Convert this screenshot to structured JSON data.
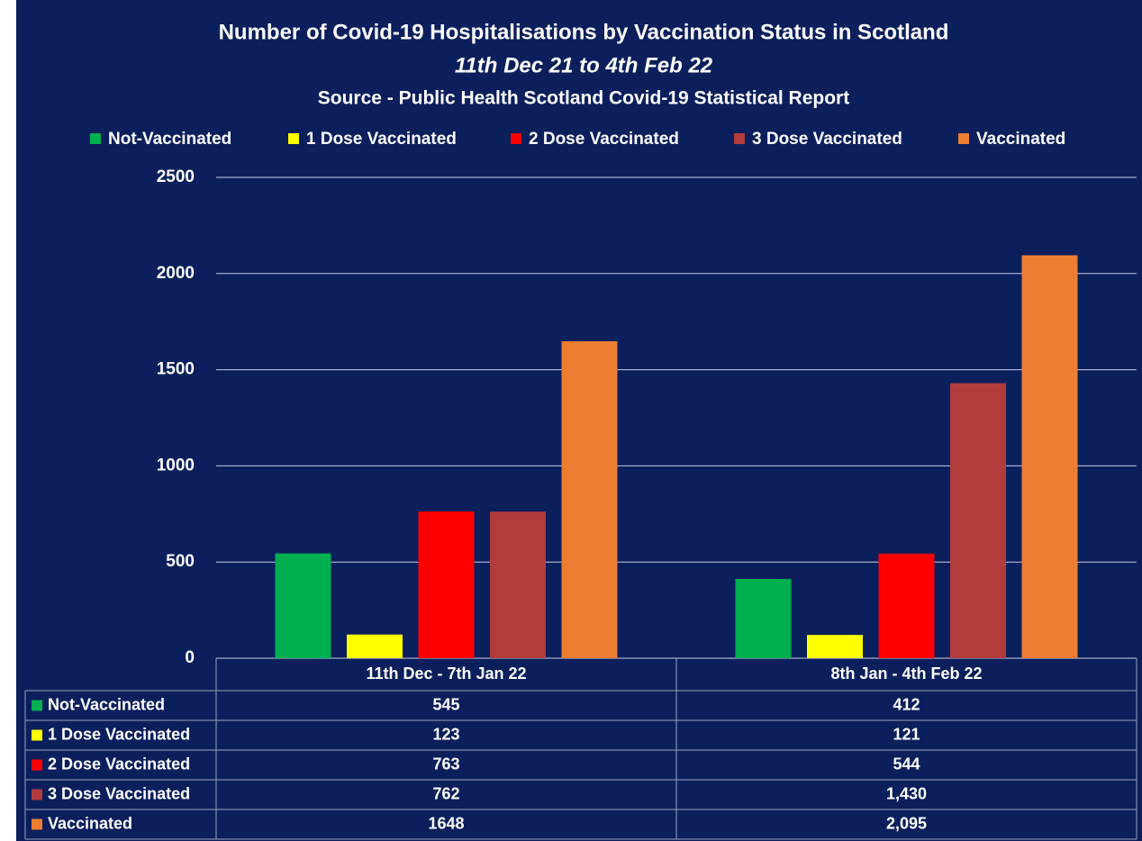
{
  "chart_data": {
    "type": "bar",
    "title": "Number of Covid-19 Hospitalisations by Vaccination Status in Scotland",
    "subtitle": "11th Dec 21 to 4th Feb 22",
    "source": "Source - Public Health Scotland Covid-19 Statistical Report",
    "categories": [
      "11th Dec - 7th Jan 22",
      "8th Jan - 4th Feb 22"
    ],
    "series": [
      {
        "name": "Not-Vaccinated",
        "color": "#00b050",
        "values": [
          545,
          412
        ]
      },
      {
        "name": "1 Dose Vaccinated",
        "color": "#ffff00",
        "values": [
          123,
          121
        ]
      },
      {
        "name": "2 Dose Vaccinated",
        "color": "#ff0000",
        "values": [
          763,
          544
        ]
      },
      {
        "name": "3 Dose Vaccinated",
        "color": "#b23c3c",
        "values": [
          762,
          1430
        ],
        "value_labels": [
          "762",
          "1,430"
        ]
      },
      {
        "name": "Vaccinated",
        "color": "#ed7d31",
        "values": [
          1648,
          2095
        ],
        "value_labels": [
          "1648",
          "2,095"
        ]
      }
    ],
    "ylim": [
      0,
      2500
    ],
    "yticks": [
      0,
      500,
      1000,
      1500,
      2000,
      2500
    ],
    "grid": true,
    "legend": "top",
    "data_table": true
  }
}
